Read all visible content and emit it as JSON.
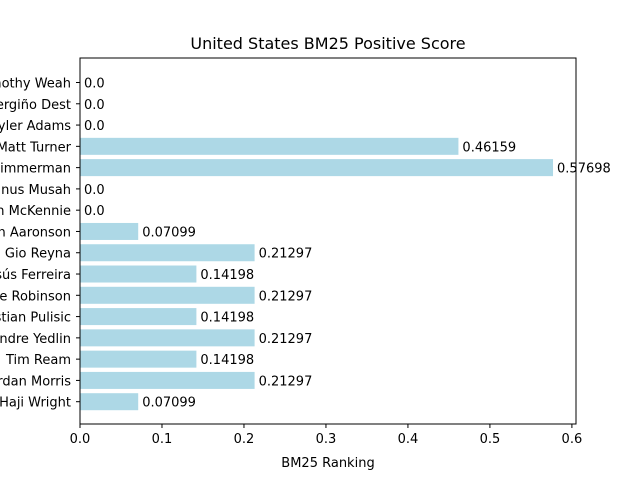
{
  "chart_data": {
    "type": "bar",
    "orientation": "horizontal",
    "title": "United States BM25 Positive Score",
    "xlabel": "BM25 Ranking",
    "ylabel": "",
    "xlim": [
      0,
      0.605
    ],
    "xticks": [
      0.0,
      0.1,
      0.2,
      0.3,
      0.4,
      0.5,
      0.6
    ],
    "xtick_labels": [
      "0.0",
      "0.1",
      "0.2",
      "0.3",
      "0.4",
      "0.5",
      "0.6"
    ],
    "bar_color": "#add8e6",
    "grid": false,
    "categories": [
      "Timothy Weah",
      "Sergiño Dest",
      "Tyler Adams",
      "Matt Turner",
      "Walker Zimmerman",
      "Yunus Musah",
      "Weston McKennie",
      "Brenden Aaronson",
      "Gio Reyna",
      "Jesús Ferreira",
      "Antonee Robinson",
      "Christian Pulisic",
      "DeAndre Yedlin",
      "Tim Ream",
      "Jordan Morris",
      "Haji Wright"
    ],
    "values": [
      0.0,
      0.0,
      0.0,
      0.46159,
      0.57698,
      0.0,
      0.0,
      0.07099,
      0.21297,
      0.14198,
      0.21297,
      0.14198,
      0.21297,
      0.14198,
      0.21297,
      0.07099
    ],
    "value_labels": [
      "0.0",
      "0.0",
      "0.0",
      "0.46159",
      "0.57698",
      "0.0",
      "0.0",
      "0.07099",
      "0.21297",
      "0.14198",
      "0.21297",
      "0.14198",
      "0.21297",
      "0.14198",
      "0.21297",
      "0.07099"
    ]
  }
}
